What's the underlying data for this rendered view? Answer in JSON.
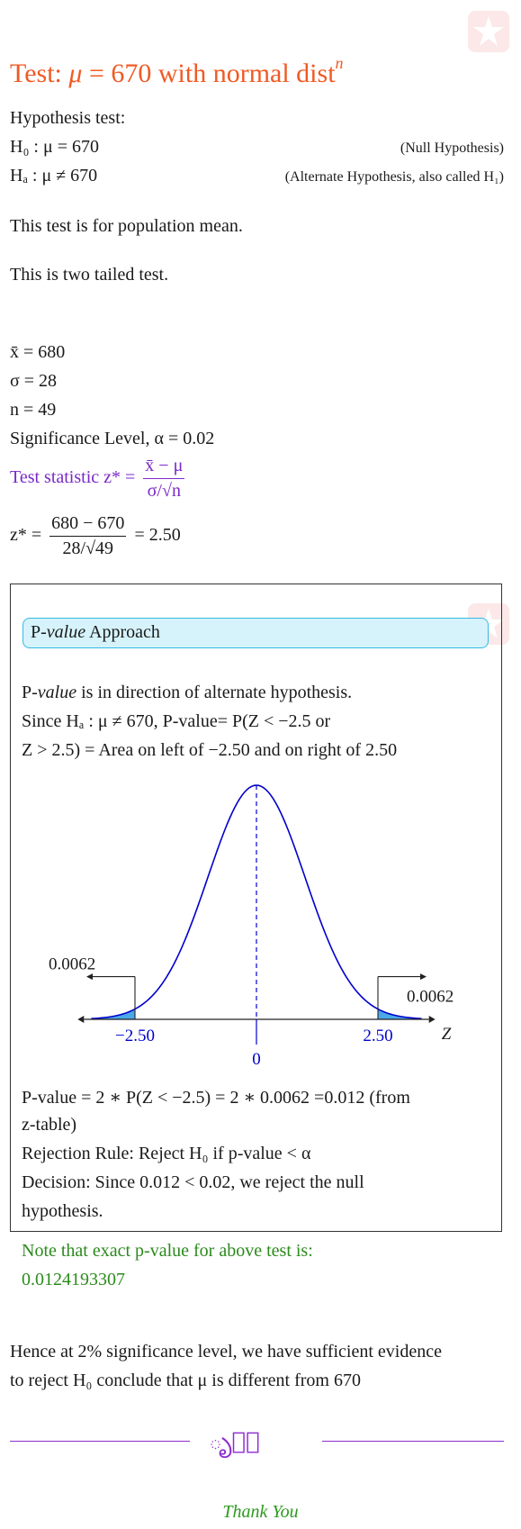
{
  "title": {
    "prefix": "Test: ",
    "mu": "μ",
    "rest": " = 670 with normal dist",
    "sup": "n"
  },
  "hypothesis_heading": "Hypothesis test:",
  "h0": {
    "text": "H₀ : μ = 670",
    "note": "(Null Hypothesis)"
  },
  "ha": {
    "text": "Hₐ : μ ≠ 670",
    "note": "(Alternate Hypothesis, also called H₁)"
  },
  "test_type": "This test is for population mean.",
  "tail_type": "This is two tailed test.",
  "givens": {
    "xbar": "x̄ = 680",
    "sigma": "σ = 28",
    "n": "n = 49",
    "alpha": "Significance Level, α = 0.02"
  },
  "test_statistic": {
    "label": "Test statistic z* =",
    "num": "x̄ − μ",
    "den": "σ/√n"
  },
  "z_calc": {
    "lhs": "z* =",
    "num": "680 − 670",
    "den": "28/√49",
    "rhs": "= 2.50"
  },
  "approach": {
    "heading_prefix": "P-",
    "heading_italic": "value",
    "heading_suffix": " Approach",
    "line1_prefix": "P-",
    "line1_italic": "value",
    "line1_suffix": " is in direction of alternate hypothesis.",
    "line2": "Since Hₐ : μ ≠ 670, P-value= P(Z < −2.5 or",
    "line3": "Z > 2.5) = Area on left of −2.50 and on right of 2.50"
  },
  "chart_data": {
    "type": "area",
    "curve": "standard normal",
    "x_axis_label": "Z",
    "center_label": "0",
    "left_critical": {
      "x": -2.5,
      "label": "−2.50",
      "area_label": "0.0062"
    },
    "right_critical": {
      "x": 2.5,
      "label": "2.50",
      "area_label": "0.0062"
    },
    "curve_color": "#0000cc",
    "shade_color": "#4aa8e8"
  },
  "results": {
    "pvalue_line1": "P-value = 2 ∗ P(Z < −2.5) = 2 ∗ 0.0062 =0.012 (from",
    "pvalue_line2": "z-table)",
    "rejection_rule": "Rejection Rule: Reject H₀ if p-value < α",
    "decision_line1": "Decision: Since 0.012 < 0.02, we reject the null",
    "decision_line2": "hypothesis.",
    "exact_note": "Note that exact p-value for above test is:",
    "exact_value": "0.0124193307"
  },
  "conclusion": {
    "line1": "Hence at 2% significance level, we have sufficient evidence",
    "line2": "to reject H₀ conclude that μ is different from 670"
  },
  "ornament": "ృ✱ృ",
  "thanks": "Thank You",
  "colors": {
    "title": "#f05a24",
    "purple": "#7a28c8",
    "green": "#2b8a1c",
    "box_fill": "#d6f3fb",
    "box_border": "#36b9e4"
  }
}
